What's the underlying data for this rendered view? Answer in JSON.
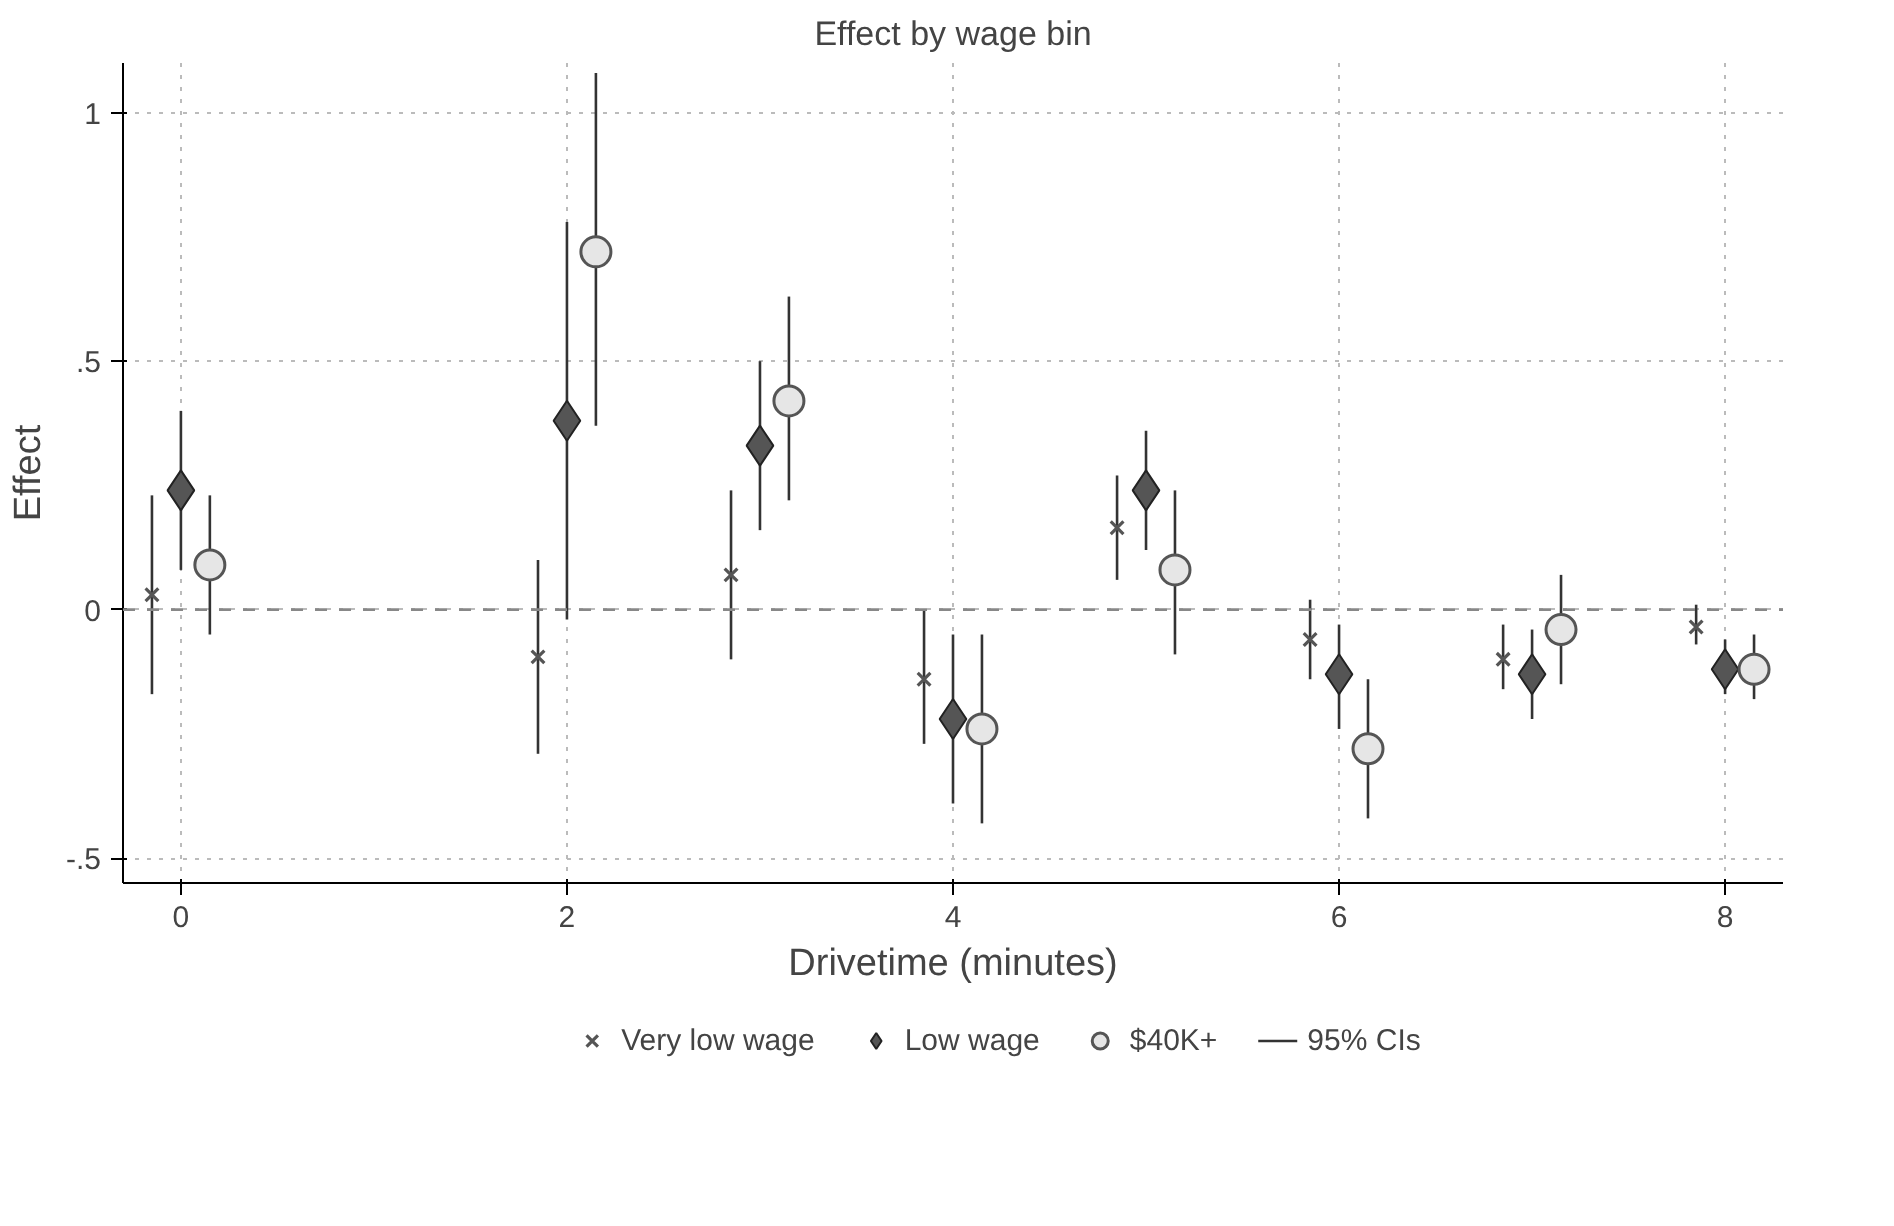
{
  "chart_data": {
    "type": "scatter",
    "title": "Effect by wage bin",
    "xlabel": "Drivetime (minutes)",
    "ylabel": "Effect",
    "xlim": [
      -0.3,
      8.3
    ],
    "xticks": [
      0,
      2,
      4,
      6,
      8
    ],
    "ylim": [
      -0.55,
      1.1
    ],
    "yticks": [
      {
        "value": -0.5,
        "label": "-.5"
      },
      0,
      {
        "value": 0.5,
        "label": ".5"
      },
      1
    ],
    "grid": true,
    "legend": "bottom",
    "annotations": [
      "95% CIs"
    ],
    "ref_lines": [
      {
        "axis": "y",
        "value": 0,
        "color": "#888888",
        "line_style": "dashed"
      }
    ],
    "series": [
      {
        "name": "Very low wage",
        "color": "#555555",
        "marker": "cross",
        "x": [
          -0.15,
          1.85,
          2.85,
          3.85,
          4.85,
          5.85,
          6.85,
          7.85
        ],
        "values": [
          0.03,
          -0.095,
          0.07,
          -0.14,
          0.165,
          -0.06,
          -0.1,
          -0.035
        ],
        "errors": [
          [
            -0.17,
            0.23
          ],
          [
            -0.29,
            0.1
          ],
          [
            -0.1,
            0.24
          ],
          [
            -0.27,
            0.0
          ],
          [
            0.06,
            0.27
          ],
          [
            -0.14,
            0.02
          ],
          [
            -0.16,
            -0.03
          ],
          [
            -0.07,
            0.01
          ]
        ]
      },
      {
        "name": "Low wage",
        "color": "#555555",
        "marker": "diamond",
        "x": [
          0,
          2,
          3,
          4,
          5,
          6,
          7,
          8
        ],
        "values": [
          0.24,
          0.38,
          0.33,
          -0.22,
          0.24,
          -0.13,
          -0.13,
          -0.12
        ],
        "errors": [
          [
            0.08,
            0.4
          ],
          [
            -0.02,
            0.78
          ],
          [
            0.16,
            0.5
          ],
          [
            -0.39,
            -0.05
          ],
          [
            0.12,
            0.36
          ],
          [
            -0.24,
            -0.03
          ],
          [
            -0.22,
            -0.04
          ],
          [
            -0.17,
            -0.06
          ]
        ]
      },
      {
        "name": "$40K+",
        "color": "#555555",
        "marker": "circle",
        "x": [
          0.15,
          2.15,
          3.15,
          4.15,
          5.15,
          6.15,
          7.15,
          8.15
        ],
        "values": [
          0.09,
          0.72,
          0.42,
          -0.24,
          0.08,
          -0.28,
          -0.04,
          -0.12
        ],
        "errors": [
          [
            -0.05,
            0.23
          ],
          [
            0.37,
            1.08
          ],
          [
            0.22,
            0.63
          ],
          [
            -0.43,
            -0.05
          ],
          [
            -0.09,
            0.24
          ],
          [
            -0.42,
            -0.14
          ],
          [
            -0.15,
            0.07
          ],
          [
            -0.18,
            -0.05
          ]
        ]
      }
    ]
  }
}
